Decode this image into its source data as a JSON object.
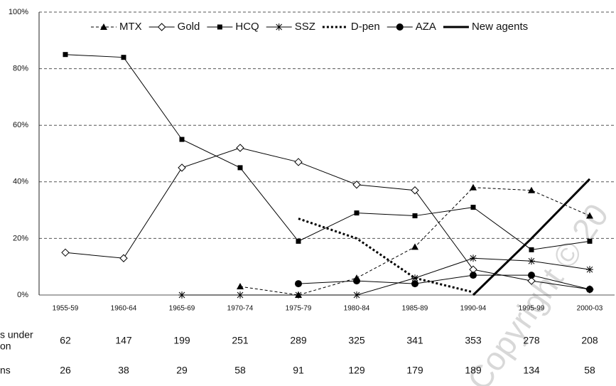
{
  "chart_data": {
    "type": "line",
    "categories": [
      "1955-59",
      "1960-64",
      "1965-69",
      "1970-74",
      "1975-79",
      "1980-84",
      "1985-89",
      "1990-94",
      "1995-99",
      "2000-03"
    ],
    "series": [
      {
        "name": "MTX",
        "color": "#000000",
        "dash": "dashed",
        "marker": "triangle",
        "values": [
          null,
          null,
          null,
          3,
          0,
          6,
          17,
          38,
          37,
          28
        ]
      },
      {
        "name": "Gold",
        "color": "#000000",
        "dash": "solid",
        "marker": "diamond",
        "values": [
          15,
          13,
          45,
          52,
          47,
          39,
          37,
          9,
          5,
          2
        ]
      },
      {
        "name": "HCQ",
        "color": "#000000",
        "dash": "solid",
        "marker": "square",
        "values": [
          85,
          84,
          55,
          45,
          19,
          29,
          28,
          31,
          16,
          19
        ]
      },
      {
        "name": "SSZ",
        "color": "#000000",
        "dash": "solid",
        "marker": "asterisk",
        "values": [
          null,
          null,
          0,
          0,
          0,
          0,
          6,
          13,
          12,
          9
        ]
      },
      {
        "name": "D-pen",
        "color": "#000000",
        "dash": "dotted",
        "marker": "none",
        "values": [
          null,
          null,
          null,
          null,
          27,
          20,
          6,
          1,
          null,
          null
        ]
      },
      {
        "name": "AZA",
        "color": "#000000",
        "dash": "solid",
        "marker": "circle",
        "values": [
          null,
          null,
          null,
          null,
          4,
          5,
          4,
          7,
          7,
          2
        ]
      },
      {
        "name": "New agents",
        "color": "#000000",
        "dash": "thick",
        "marker": "none",
        "values": [
          null,
          null,
          null,
          null,
          null,
          null,
          null,
          0,
          20,
          41
        ]
      }
    ],
    "ylim": [
      0,
      100
    ],
    "yticks": [
      {
        "value": 0,
        "label": "0%"
      },
      {
        "value": 20,
        "label": "20%"
      },
      {
        "value": 40,
        "label": "40%"
      },
      {
        "value": 60,
        "label": "60%"
      },
      {
        "value": 80,
        "label": "80%"
      },
      {
        "value": 100,
        "label": "100%"
      }
    ],
    "grid": true,
    "table_rows": [
      {
        "label": [
          "s under",
          "on"
        ],
        "values": [
          62,
          147,
          199,
          251,
          289,
          325,
          341,
          353,
          278,
          208
        ]
      },
      {
        "label": [
          "ns"
        ],
        "values": [
          26,
          38,
          29,
          58,
          91,
          129,
          179,
          189,
          134,
          58
        ]
      }
    ],
    "watermark": "Copyright © 20"
  }
}
